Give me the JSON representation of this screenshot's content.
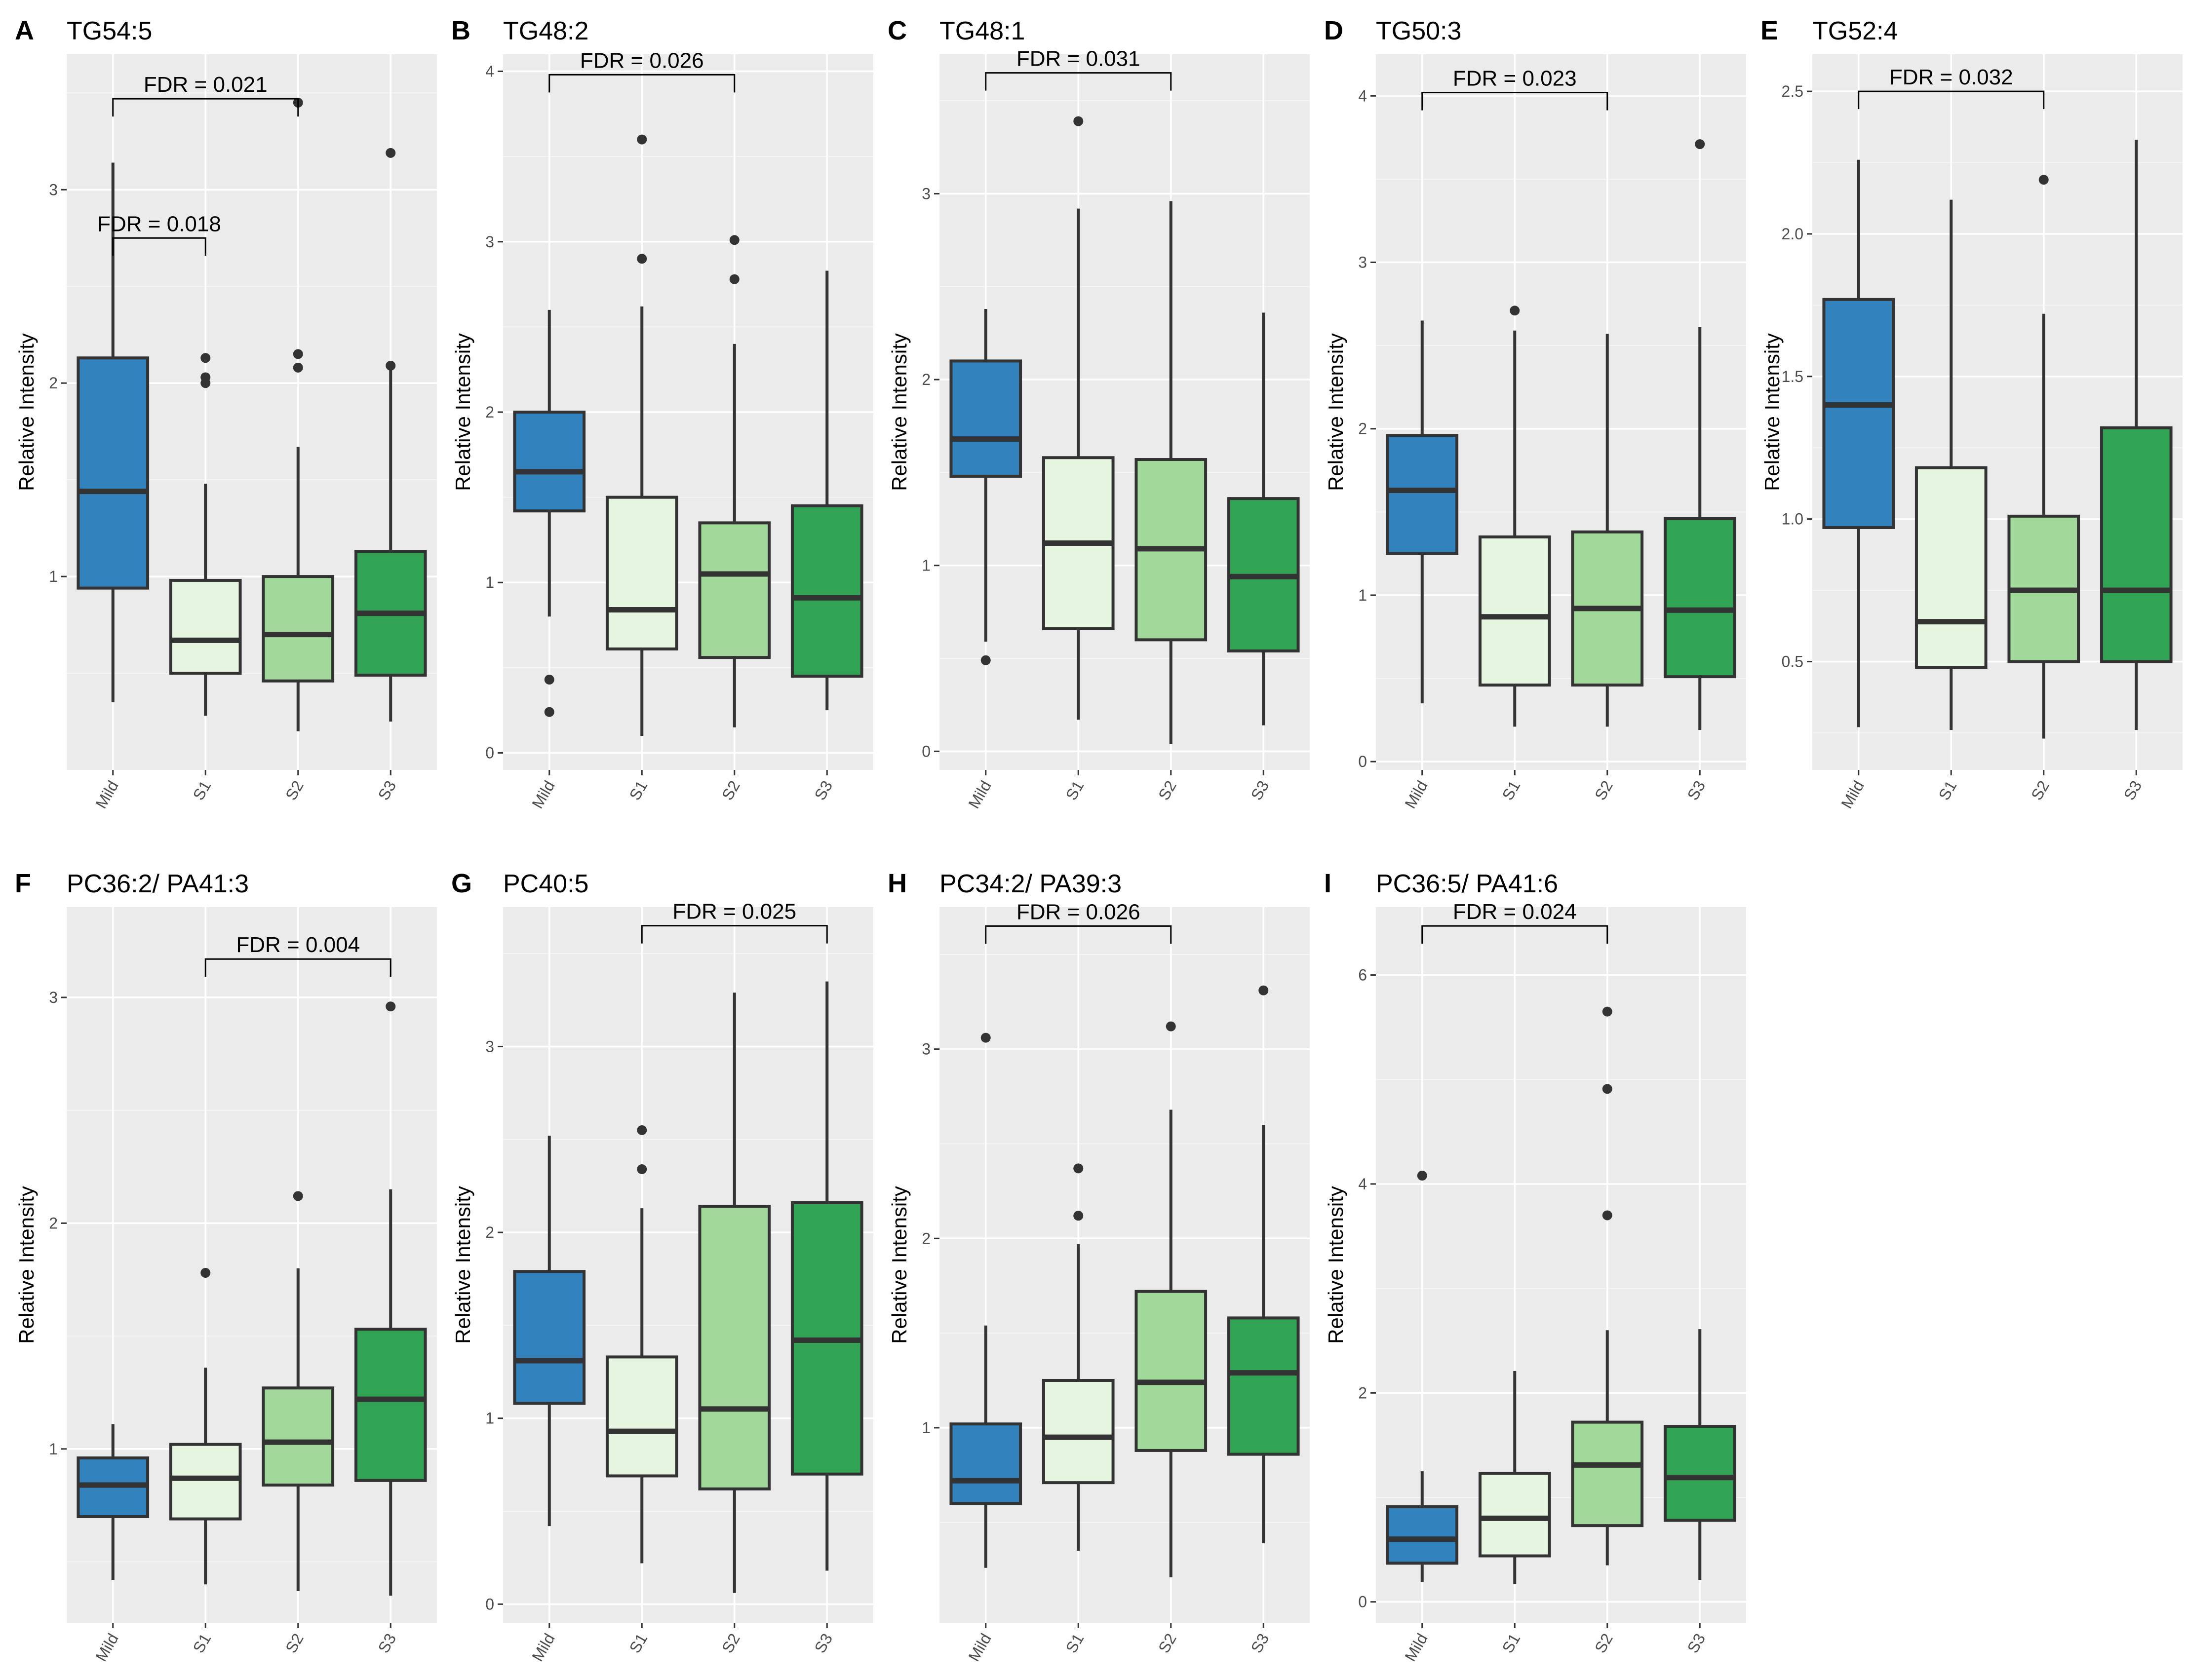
{
  "colors": {
    "Mild": "#3182bd",
    "S1": "#e5f5e0",
    "S2": "#a1d99b",
    "S3": "#31a354"
  },
  "chart_data": [
    {
      "type": "box",
      "letter": "A",
      "title": "TG54:5",
      "ylabel": "Relative Intensity",
      "ylim": [
        0,
        3.7
      ],
      "yticks": [
        1,
        2,
        3
      ],
      "categories": [
        "Mild",
        "S1",
        "S2",
        "S3"
      ],
      "boxes": [
        {
          "low": 0.35,
          "q1": 0.94,
          "median": 1.44,
          "q3": 2.13,
          "high": 3.14,
          "outliers": []
        },
        {
          "low": 0.28,
          "q1": 0.5,
          "median": 0.67,
          "q3": 0.98,
          "high": 1.48,
          "outliers": [
            2.0,
            2.03,
            2.13
          ]
        },
        {
          "low": 0.2,
          "q1": 0.46,
          "median": 0.7,
          "q3": 1.0,
          "high": 1.67,
          "outliers": [
            2.08,
            2.15,
            3.45
          ]
        },
        {
          "low": 0.25,
          "q1": 0.49,
          "median": 0.81,
          "q3": 1.13,
          "high": 2.08,
          "outliers": [
            2.09,
            3.19
          ]
        }
      ],
      "brackets": [
        {
          "from": 0,
          "to": 1,
          "y": 2.75,
          "label": "FDR = ",
          "value": "0.018"
        },
        {
          "from": 0,
          "to": 2,
          "y": 3.47,
          "label": "FDR = ",
          "value": "0.021"
        }
      ]
    },
    {
      "type": "box",
      "letter": "B",
      "title": "TG48:2",
      "ylabel": "Relative Intensity",
      "ylim": [
        -0.1,
        4.1
      ],
      "yticks": [
        0,
        1,
        2,
        3,
        4
      ],
      "categories": [
        "Mild",
        "S1",
        "S2",
        "S3"
      ],
      "boxes": [
        {
          "low": 0.8,
          "q1": 1.42,
          "median": 1.65,
          "q3": 2.0,
          "high": 2.6,
          "outliers": [
            0.24,
            0.43
          ]
        },
        {
          "low": 0.1,
          "q1": 0.61,
          "median": 0.84,
          "q3": 1.5,
          "high": 2.62,
          "outliers": [
            2.9,
            3.6
          ]
        },
        {
          "low": 0.15,
          "q1": 0.56,
          "median": 1.05,
          "q3": 1.35,
          "high": 2.4,
          "outliers": [
            2.78,
            3.01
          ]
        },
        {
          "low": 0.25,
          "q1": 0.45,
          "median": 0.91,
          "q3": 1.45,
          "high": 2.83,
          "outliers": []
        }
      ],
      "brackets": [
        {
          "from": 0,
          "to": 2,
          "y": 3.98,
          "label": "FDR = ",
          "value": "0.026"
        }
      ]
    },
    {
      "type": "box",
      "letter": "C",
      "title": "TG48:1",
      "ylabel": "Relative Intensity",
      "ylim": [
        -0.1,
        3.75
      ],
      "yticks": [
        0,
        1,
        2,
        3
      ],
      "categories": [
        "Mild",
        "S1",
        "S2",
        "S3"
      ],
      "boxes": [
        {
          "low": 0.59,
          "q1": 1.48,
          "median": 1.68,
          "q3": 2.1,
          "high": 2.38,
          "outliers": [
            0.49
          ]
        },
        {
          "low": 0.17,
          "q1": 0.66,
          "median": 1.12,
          "q3": 1.58,
          "high": 2.92,
          "outliers": [
            3.39
          ]
        },
        {
          "low": 0.04,
          "q1": 0.6,
          "median": 1.09,
          "q3": 1.57,
          "high": 2.96,
          "outliers": []
        },
        {
          "low": 0.14,
          "q1": 0.54,
          "median": 0.94,
          "q3": 1.36,
          "high": 2.36,
          "outliers": []
        }
      ],
      "brackets": [
        {
          "from": 0,
          "to": 2,
          "y": 3.65,
          "label": "FDR = ",
          "value": "0.031"
        }
      ]
    },
    {
      "type": "box",
      "letter": "D",
      "title": "TG50:3",
      "ylabel": "Relative Intensity",
      "ylim": [
        -0.05,
        4.25
      ],
      "yticks": [
        0,
        1,
        2,
        3,
        4
      ],
      "categories": [
        "Mild",
        "S1",
        "S2",
        "S3"
      ],
      "boxes": [
        {
          "low": 0.35,
          "q1": 1.25,
          "median": 1.63,
          "q3": 1.96,
          "high": 2.65,
          "outliers": []
        },
        {
          "low": 0.21,
          "q1": 0.46,
          "median": 0.87,
          "q3": 1.35,
          "high": 2.59,
          "outliers": [
            2.71
          ]
        },
        {
          "low": 0.21,
          "q1": 0.46,
          "median": 0.92,
          "q3": 1.38,
          "high": 2.57,
          "outliers": []
        },
        {
          "low": 0.19,
          "q1": 0.51,
          "median": 0.91,
          "q3": 1.46,
          "high": 2.61,
          "outliers": [
            3.71
          ]
        }
      ],
      "brackets": [
        {
          "from": 0,
          "to": 2,
          "y": 4.02,
          "label": "FDR = ",
          "value": "0.023"
        }
      ]
    },
    {
      "type": "box",
      "letter": "E",
      "title": "TG52:4",
      "ylabel": "Relative Intensity",
      "ylim": [
        0.12,
        2.63
      ],
      "yticks": [
        0.5,
        1.0,
        1.5,
        2.0,
        2.5
      ],
      "categories": [
        "Mild",
        "S1",
        "S2",
        "S3"
      ],
      "boxes": [
        {
          "low": 0.27,
          "q1": 0.97,
          "median": 1.4,
          "q3": 1.77,
          "high": 2.26,
          "outliers": []
        },
        {
          "low": 0.26,
          "q1": 0.48,
          "median": 0.64,
          "q3": 1.18,
          "high": 2.12,
          "outliers": []
        },
        {
          "low": 0.23,
          "q1": 0.5,
          "median": 0.75,
          "q3": 1.01,
          "high": 1.72,
          "outliers": [
            2.19
          ]
        },
        {
          "low": 0.26,
          "q1": 0.5,
          "median": 0.75,
          "q3": 1.32,
          "high": 2.33,
          "outliers": []
        }
      ],
      "brackets": [
        {
          "from": 0,
          "to": 2,
          "y": 2.5,
          "label": "FDR = ",
          "value": "0.032"
        }
      ]
    },
    {
      "type": "box",
      "letter": "F",
      "title": "PC36:2/ PA41:3",
      "ylabel": "Relative Intensity",
      "ylim": [
        0.23,
        3.4
      ],
      "yticks": [
        1,
        2,
        3
      ],
      "categories": [
        "Mild",
        "S1",
        "S2",
        "S3"
      ],
      "boxes": [
        {
          "low": 0.42,
          "q1": 0.7,
          "median": 0.84,
          "q3": 0.96,
          "high": 1.11,
          "outliers": []
        },
        {
          "low": 0.4,
          "q1": 0.69,
          "median": 0.87,
          "q3": 1.02,
          "high": 1.36,
          "outliers": [
            1.78
          ]
        },
        {
          "low": 0.37,
          "q1": 0.84,
          "median": 1.03,
          "q3": 1.27,
          "high": 1.8,
          "outliers": [
            2.12
          ]
        },
        {
          "low": 0.35,
          "q1": 0.86,
          "median": 1.22,
          "q3": 1.53,
          "high": 2.15,
          "outliers": [
            2.96
          ]
        }
      ],
      "brackets": [
        {
          "from": 1,
          "to": 3,
          "y": 3.17,
          "label": "FDR = ",
          "value": "0.004"
        }
      ]
    },
    {
      "type": "box",
      "letter": "G",
      "title": "PC40:5",
      "ylabel": "Relative Intensity",
      "ylim": [
        -0.1,
        3.75
      ],
      "yticks": [
        0,
        1,
        2,
        3
      ],
      "categories": [
        "Mild",
        "S1",
        "S2",
        "S3"
      ],
      "boxes": [
        {
          "low": 0.42,
          "q1": 1.08,
          "median": 1.31,
          "q3": 1.79,
          "high": 2.52,
          "outliers": []
        },
        {
          "low": 0.22,
          "q1": 0.69,
          "median": 0.93,
          "q3": 1.33,
          "high": 2.13,
          "outliers": [
            2.34,
            2.55
          ]
        },
        {
          "low": 0.06,
          "q1": 0.62,
          "median": 1.05,
          "q3": 2.14,
          "high": 3.29,
          "outliers": []
        },
        {
          "low": 0.18,
          "q1": 0.7,
          "median": 1.42,
          "q3": 2.16,
          "high": 3.35,
          "outliers": []
        }
      ],
      "brackets": [
        {
          "from": 1,
          "to": 3,
          "y": 3.65,
          "label": "FDR = ",
          "value": "0.025"
        }
      ]
    },
    {
      "type": "box",
      "letter": "H",
      "title": "PC34:2/ PA39:3",
      "ylabel": "Relative Intensity",
      "ylim": [
        -0.03,
        3.75
      ],
      "yticks": [
        1,
        2,
        3
      ],
      "categories": [
        "Mild",
        "S1",
        "S2",
        "S3"
      ],
      "boxes": [
        {
          "low": 0.26,
          "q1": 0.6,
          "median": 0.72,
          "q3": 1.02,
          "high": 1.54,
          "outliers": [
            3.06
          ]
        },
        {
          "low": 0.35,
          "q1": 0.71,
          "median": 0.95,
          "q3": 1.25,
          "high": 1.97,
          "outliers": [
            2.12,
            2.37
          ]
        },
        {
          "low": 0.21,
          "q1": 0.88,
          "median": 1.24,
          "q3": 1.72,
          "high": 2.68,
          "outliers": [
            3.12
          ]
        },
        {
          "low": 0.39,
          "q1": 0.86,
          "median": 1.29,
          "q3": 1.58,
          "high": 2.6,
          "outliers": [
            3.31
          ]
        }
      ],
      "brackets": [
        {
          "from": 0,
          "to": 2,
          "y": 3.65,
          "label": "FDR = ",
          "value": "0.026"
        }
      ]
    },
    {
      "type": "box",
      "letter": "I",
      "title": "PC36:5/ PA41:6",
      "ylabel": "Relative Intensity",
      "ylim": [
        -0.2,
        6.65
      ],
      "yticks": [
        0,
        2,
        4,
        6
      ],
      "categories": [
        "Mild",
        "S1",
        "S2",
        "S3"
      ],
      "boxes": [
        {
          "low": 0.19,
          "q1": 0.37,
          "median": 0.6,
          "q3": 0.91,
          "high": 1.25,
          "outliers": [
            4.08
          ]
        },
        {
          "low": 0.17,
          "q1": 0.44,
          "median": 0.8,
          "q3": 1.23,
          "high": 2.21,
          "outliers": []
        },
        {
          "low": 0.35,
          "q1": 0.73,
          "median": 1.31,
          "q3": 1.72,
          "high": 2.6,
          "outliers": [
            3.7,
            4.91,
            5.65
          ]
        },
        {
          "low": 0.21,
          "q1": 0.78,
          "median": 1.19,
          "q3": 1.68,
          "high": 2.61,
          "outliers": []
        }
      ],
      "brackets": [
        {
          "from": 0,
          "to": 2,
          "y": 6.47,
          "label": "FDR = ",
          "value": "0.024"
        }
      ]
    }
  ]
}
